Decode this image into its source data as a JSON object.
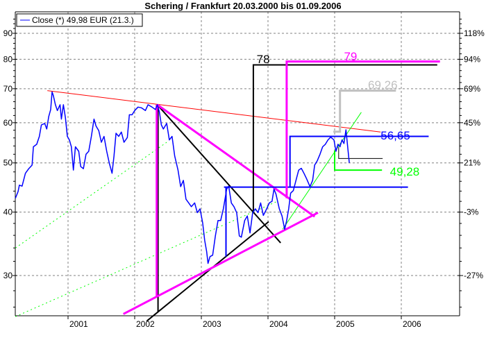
{
  "chart_data": {
    "type": "line",
    "title": "Schering / Frankfurt 20.03.2000 bis 01.09.2006",
    "xlabel": "",
    "ylabel": "",
    "y_scale": "log",
    "xlim": [
      2000.21,
      2006.67
    ],
    "ylim": [
      23.5,
      98
    ],
    "grid": true,
    "legend_placement": "top-left",
    "x_ticks": [
      "2001",
      "2002",
      "2003",
      "2004",
      "2005",
      "2006"
    ],
    "y_ticks_left": [
      90,
      80,
      70,
      60,
      50,
      40,
      30
    ],
    "y_ticks_right": [
      "118%",
      "94%",
      "69%",
      "45%",
      "21%",
      "-3%",
      "-27%"
    ],
    "legend": {
      "label": "Close (*) 49,98 EUR (21.3.)",
      "color": "#0000ff"
    },
    "series": [
      {
        "name": "Close (*) 49,98 EUR (21.3.)",
        "color": "#0000ff",
        "points": [
          [
            2000.21,
            42.6
          ],
          [
            2000.25,
            43.9
          ],
          [
            2000.27,
            45.2
          ],
          [
            2000.31,
            45.0
          ],
          [
            2000.36,
            47.7
          ],
          [
            2000.41,
            48.7
          ],
          [
            2000.46,
            49.5
          ],
          [
            2000.48,
            53.8
          ],
          [
            2000.53,
            54.4
          ],
          [
            2000.57,
            56.4
          ],
          [
            2000.6,
            59.4
          ],
          [
            2000.65,
            59.8
          ],
          [
            2000.68,
            58.3
          ],
          [
            2000.71,
            61.7
          ],
          [
            2000.74,
            63.7
          ],
          [
            2000.76,
            69.0
          ],
          [
            2000.78,
            67.8
          ],
          [
            2000.81,
            65.1
          ],
          [
            2000.84,
            63.4
          ],
          [
            2000.88,
            65.1
          ],
          [
            2000.9,
            61.0
          ],
          [
            2000.93,
            65.1
          ],
          [
            2000.96,
            61.4
          ],
          [
            2000.99,
            56.4
          ],
          [
            2001.02,
            55.5
          ],
          [
            2001.05,
            53.8
          ],
          [
            2001.08,
            48.4
          ],
          [
            2001.11,
            53.8
          ],
          [
            2001.16,
            52.7
          ],
          [
            2001.19,
            49.2
          ],
          [
            2001.23,
            48.7
          ],
          [
            2001.27,
            52.0
          ],
          [
            2001.31,
            52.7
          ],
          [
            2001.35,
            56.4
          ],
          [
            2001.39,
            61.0
          ],
          [
            2001.42,
            59.1
          ],
          [
            2001.46,
            57.9
          ],
          [
            2001.5,
            54.9
          ],
          [
            2001.54,
            56.4
          ],
          [
            2001.58,
            52.7
          ],
          [
            2001.62,
            49.9
          ],
          [
            2001.66,
            47.7
          ],
          [
            2001.69,
            51.6
          ],
          [
            2001.72,
            57.2
          ],
          [
            2001.76,
            56.4
          ],
          [
            2001.8,
            57.5
          ],
          [
            2001.84,
            54.9
          ],
          [
            2001.89,
            56.1
          ],
          [
            2001.92,
            62.2
          ],
          [
            2001.96,
            62.2
          ],
          [
            2002.0,
            63.4
          ],
          [
            2002.05,
            64.4
          ],
          [
            2002.1,
            64.2
          ],
          [
            2002.16,
            63.4
          ],
          [
            2002.2,
            65.1
          ],
          [
            2002.26,
            64.4
          ],
          [
            2002.31,
            63.7
          ],
          [
            2002.34,
            65.1
          ],
          [
            2002.37,
            63.1
          ],
          [
            2002.4,
            59.4
          ],
          [
            2002.43,
            58.3
          ],
          [
            2002.48,
            59.8
          ],
          [
            2002.52,
            55.5
          ],
          [
            2002.56,
            56.4
          ],
          [
            2002.6,
            51.6
          ],
          [
            2002.65,
            48.4
          ],
          [
            2002.69,
            44.9
          ],
          [
            2002.73,
            46.2
          ],
          [
            2002.77,
            42.4
          ],
          [
            2002.81,
            41.7
          ],
          [
            2002.85,
            41.0
          ],
          [
            2002.9,
            41.7
          ],
          [
            2002.94,
            39.9
          ],
          [
            2002.98,
            40.6
          ],
          [
            2003.02,
            38.1
          ],
          [
            2003.05,
            35.2
          ],
          [
            2003.08,
            33.4
          ],
          [
            2003.1,
            31.7
          ],
          [
            2003.13,
            32.7
          ],
          [
            2003.17,
            32.9
          ],
          [
            2003.21,
            35.9
          ],
          [
            2003.25,
            38.5
          ],
          [
            2003.29,
            38.5
          ],
          [
            2003.33,
            40.6
          ],
          [
            2003.38,
            44.4
          ],
          [
            2003.41,
            45.0
          ],
          [
            2003.45,
            41.7
          ],
          [
            2003.49,
            41.0
          ],
          [
            2003.53,
            39.9
          ],
          [
            2003.57,
            35.9
          ],
          [
            2003.6,
            35.7
          ],
          [
            2003.65,
            38.5
          ],
          [
            2003.69,
            39.3
          ],
          [
            2003.73,
            36.4
          ],
          [
            2003.77,
            39.9
          ],
          [
            2003.81,
            40.6
          ],
          [
            2003.85,
            39.9
          ],
          [
            2003.89,
            41.7
          ],
          [
            2003.93,
            39.4
          ],
          [
            2003.98,
            40.6
          ],
          [
            2004.02,
            41.7
          ],
          [
            2004.06,
            42.0
          ],
          [
            2004.09,
            44.4
          ],
          [
            2004.12,
            43.4
          ],
          [
            2004.17,
            40.6
          ],
          [
            2004.21,
            39.3
          ],
          [
            2004.25,
            37.0
          ],
          [
            2004.28,
            38.5
          ],
          [
            2004.31,
            40.6
          ],
          [
            2004.34,
            43.6
          ],
          [
            2004.38,
            44.1
          ],
          [
            2004.42,
            46.2
          ],
          [
            2004.46,
            48.4
          ],
          [
            2004.5,
            48.8
          ],
          [
            2004.54,
            47.7
          ],
          [
            2004.58,
            46.5
          ],
          [
            2004.63,
            44.9
          ],
          [
            2004.67,
            46.2
          ],
          [
            2004.7,
            49.5
          ],
          [
            2004.74,
            50.5
          ],
          [
            2004.78,
            52.0
          ],
          [
            2004.82,
            53.8
          ],
          [
            2004.86,
            54.4
          ],
          [
            2004.9,
            55.5
          ],
          [
            2004.94,
            56.2
          ],
          [
            2004.99,
            55.5
          ],
          [
            2005.02,
            52.7
          ],
          [
            2005.05,
            54.4
          ],
          [
            2005.08,
            53.8
          ],
          [
            2005.11,
            55.5
          ],
          [
            2005.14,
            54.6
          ],
          [
            2005.17,
            58.1
          ],
          [
            2005.22,
            50.0
          ]
        ]
      }
    ],
    "annotations": [
      {
        "name": "resistance-trendline",
        "color": "#ff0000",
        "width": 1,
        "dotted": false,
        "points": [
          [
            2000.69,
            69.4
          ],
          [
            2005.69,
            57.5
          ]
        ]
      },
      {
        "name": "support-trendline-dotted-upper",
        "color": "#00ff00",
        "width": 1,
        "dotted": true,
        "points": [
          [
            2000.21,
            34.0
          ],
          [
            2002.48,
            54.9
          ]
        ]
      },
      {
        "name": "support-trendline-dotted-lower",
        "color": "#00ff00",
        "width": 1,
        "dotted": true,
        "points": [
          [
            2000.21,
            24.9
          ],
          [
            2004.14,
            42.0
          ]
        ]
      },
      {
        "name": "uptrend-line",
        "color": "#00ff00",
        "width": 1,
        "dotted": false,
        "points": [
          [
            2004.22,
            37.0
          ],
          [
            2005.4,
            62.9
          ]
        ]
      },
      {
        "name": "triangle-black-upper",
        "color": "#000000",
        "width": 2,
        "dotted": false,
        "points": [
          [
            2002.34,
            65.1
          ],
          [
            2004.19,
            34.8
          ]
        ]
      },
      {
        "name": "triangle-black-lower",
        "color": "#000000",
        "width": 2,
        "dotted": false,
        "points": [
          [
            2002.18,
            24.4
          ],
          [
            2004.01,
            38.3
          ]
        ]
      },
      {
        "name": "triangle-black-height",
        "color": "#000000",
        "width": 2,
        "dotted": false,
        "points": [
          [
            2002.35,
            65.1
          ],
          [
            2002.35,
            25.4
          ]
        ]
      },
      {
        "name": "triangle-magenta-upper",
        "color": "#ff00ff",
        "width": 3,
        "dotted": false,
        "points": [
          [
            2002.34,
            65.1
          ],
          [
            2004.7,
            39.2
          ]
        ]
      },
      {
        "name": "triangle-magenta-lower",
        "color": "#ff00ff",
        "width": 3,
        "dotted": false,
        "points": [
          [
            2001.83,
            25.2
          ],
          [
            2004.75,
            39.9
          ]
        ]
      },
      {
        "name": "triangle-magenta-height",
        "color": "#ff00ff",
        "width": 3,
        "dotted": false,
        "points": [
          [
            2002.33,
            65.1
          ],
          [
            2002.33,
            27.2
          ]
        ]
      },
      {
        "name": "blue-neckline",
        "color": "#0000ff",
        "width": 2,
        "dotted": false,
        "points": [
          [
            2003.34,
            44.8
          ],
          [
            2006.1,
            44.8
          ]
        ]
      },
      {
        "name": "blue-neckline-height",
        "color": "#0000ff",
        "width": 2,
        "dotted": false,
        "points": [
          [
            2003.37,
            44.8
          ],
          [
            2003.37,
            32.7
          ]
        ]
      },
      {
        "name": "blue-target-56-65",
        "color": "#0000ff",
        "width": 2,
        "dotted": false,
        "points": [
          [
            2004.33,
            44.8
          ],
          [
            2004.33,
            56.4
          ],
          [
            2006.41,
            56.4
          ]
        ]
      },
      {
        "name": "black-target-78",
        "color": "#000000",
        "width": 2,
        "dotted": false,
        "points": [
          [
            2003.78,
            40.2
          ],
          [
            2003.78,
            78.0
          ],
          [
            2006.54,
            78.0
          ]
        ]
      },
      {
        "name": "magenta-target-79",
        "color": "#ff00ff",
        "width": 3,
        "dotted": false,
        "points": [
          [
            2004.28,
            42.6
          ],
          [
            2004.28,
            79.2
          ],
          [
            2006.58,
            79.2
          ]
        ]
      },
      {
        "name": "gray-target-69-26",
        "color": "#c0c0c0",
        "width": 3,
        "dotted": false,
        "points": [
          [
            2004.98,
            57.6
          ],
          [
            2005.08,
            57.6
          ],
          [
            2005.08,
            69.4
          ],
          [
            2005.92,
            69.4
          ]
        ]
      },
      {
        "name": "green-target-49-28",
        "color": "#00ff00",
        "width": 2,
        "dotted": false,
        "points": [
          [
            2005.0,
            52.9
          ],
          [
            2005.0,
            48.4
          ],
          [
            2005.71,
            48.4
          ]
        ]
      },
      {
        "name": "black-thin-level",
        "color": "#000000",
        "width": 1,
        "dotted": false,
        "points": [
          [
            2005.06,
            53.7
          ],
          [
            2005.06,
            51.0
          ],
          [
            2005.72,
            51.0
          ]
        ]
      }
    ],
    "labels": [
      {
        "text": "78",
        "color": "#000000",
        "at": [
          2003.83,
          78.6
        ]
      },
      {
        "text": "79",
        "color": "#ff00ff",
        "at": [
          2005.14,
          79.6
        ]
      },
      {
        "text": "69,26",
        "color": "#c0c0c0",
        "at": [
          2005.5,
          70.0
        ]
      },
      {
        "text": "56,65",
        "color": "#0000ff",
        "at": [
          2005.69,
          55.6
        ]
      },
      {
        "text": "49,28",
        "color": "#00ff00",
        "at": [
          2005.83,
          47.2
        ]
      }
    ]
  }
}
